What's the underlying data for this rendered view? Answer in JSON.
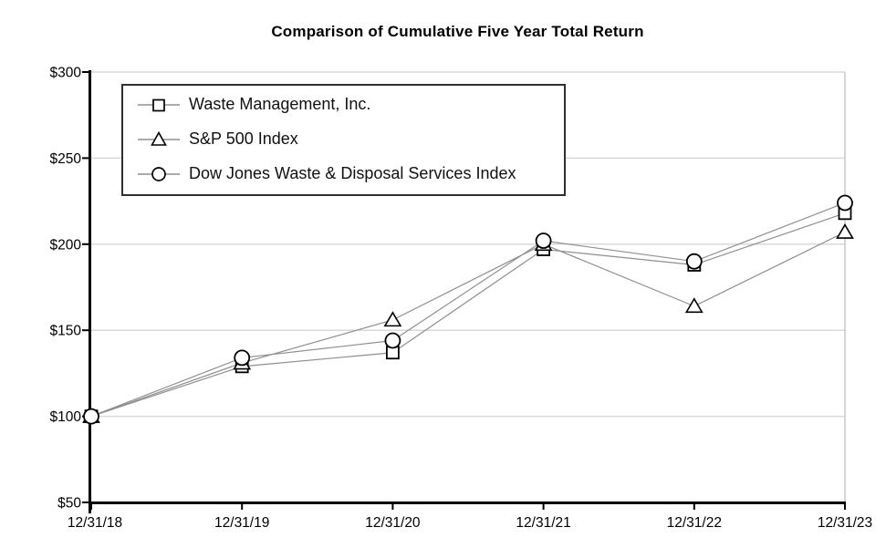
{
  "title": "Comparison of Cumulative Five Year Total Return",
  "chart_data": {
    "type": "line",
    "title": "Comparison of Cumulative Five Year Total Return",
    "x_labels": [
      "12/31/18",
      "12/31/19",
      "12/31/20",
      "12/31/21",
      "12/31/22",
      "12/31/23"
    ],
    "y_tick_labels": [
      "$50",
      "$100",
      "$150",
      "$200",
      "$250",
      "$300"
    ],
    "y_tick_values": [
      50,
      100,
      150,
      200,
      250,
      300
    ],
    "ylim": [
      50,
      300
    ],
    "grid": "horizontal-only",
    "legend_position": "inside-top-left",
    "series": [
      {
        "name": "Waste Management, Inc.",
        "marker": "square",
        "values": [
          100,
          129,
          137,
          197,
          188,
          218
        ]
      },
      {
        "name": "S&P 500 Index",
        "marker": "triangle",
        "values": [
          100,
          131,
          156,
          200,
          164,
          207
        ]
      },
      {
        "name": "Dow Jones Waste & Disposal Services Index",
        "marker": "circle",
        "values": [
          100,
          134,
          144,
          202,
          190,
          224
        ]
      }
    ]
  },
  "colors": {
    "background": "#ffffff",
    "axis": "#000000",
    "gridline": "#d9d9d9",
    "plot_border": "#c8c8c8",
    "series_line": "#8f8f8f",
    "marker_stroke": "#000000",
    "marker_fill": "#ffffff",
    "text": "#000000"
  }
}
